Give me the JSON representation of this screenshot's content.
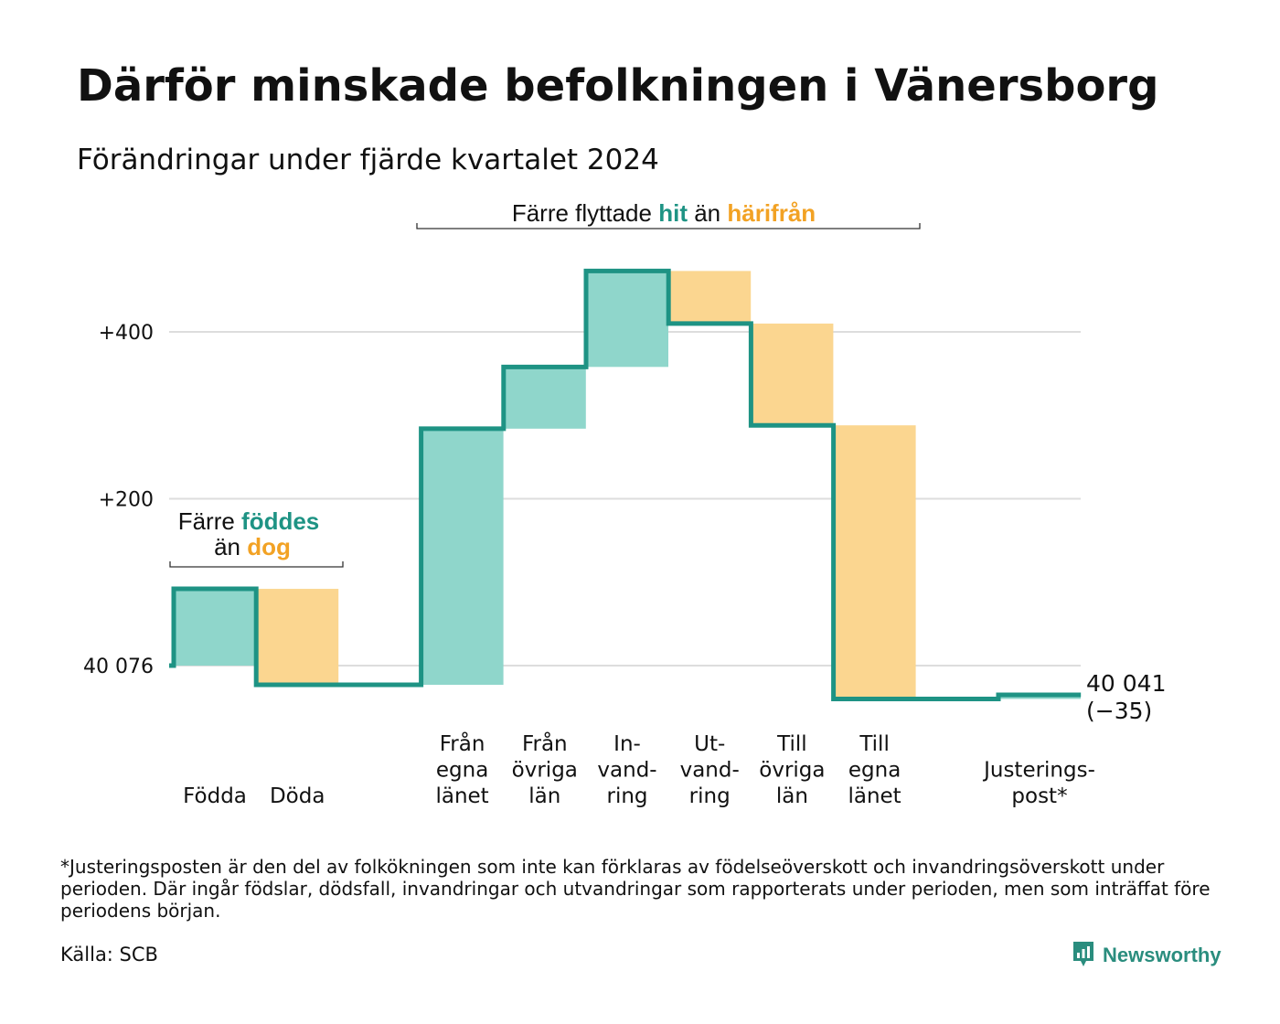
{
  "header": {
    "title": "Därför minskade befolkningen i Vänersborg",
    "subtitle": "Förändringar under fjärde kvartalet 2024"
  },
  "colors": {
    "inflow": "#8fd6cb",
    "outflow": "#fbd690",
    "line": "#1e9384",
    "grid": "#dddddd",
    "teal_text": "#1e9384",
    "orange_text": "#f2a224"
  },
  "chart_data": {
    "type": "waterfall",
    "title": "Därför minskade befolkningen i Vänersborg",
    "subtitle": "Förändringar under fjärde kvartalet 2024",
    "start_value": 40076,
    "start_label": "40 076",
    "end_value": 40041,
    "end_label": "40 041",
    "end_change_label": "(−35)",
    "y_axis_relative": true,
    "ylim": [
      -45,
      500
    ],
    "yticks": [
      {
        "value": 0,
        "label": "40 076"
      },
      {
        "value": 200,
        "label": "+200"
      },
      {
        "value": 400,
        "label": "+400"
      }
    ],
    "grid": true,
    "steps": [
      {
        "label_lines": [
          "Födda"
        ],
        "value": 92,
        "kind": "inflow"
      },
      {
        "label_lines": [
          "Döda"
        ],
        "value": -115,
        "kind": "outflow"
      },
      {
        "label_lines": [
          ""
        ],
        "value": 0,
        "kind": "none"
      },
      {
        "label_lines": [
          "Från",
          "egna",
          "länet"
        ],
        "value": 307,
        "kind": "inflow"
      },
      {
        "label_lines": [
          "Från",
          "övriga",
          "län"
        ],
        "value": 74,
        "kind": "inflow"
      },
      {
        "label_lines": [
          "In-",
          "vand-",
          "ring"
        ],
        "value": 115,
        "kind": "inflow"
      },
      {
        "label_lines": [
          "Ut-",
          "vand-",
          "ring"
        ],
        "value": -63,
        "kind": "outflow"
      },
      {
        "label_lines": [
          "Till",
          "övriga",
          "län"
        ],
        "value": -122,
        "kind": "outflow"
      },
      {
        "label_lines": [
          "Till",
          "egna",
          "länet"
        ],
        "value": -328,
        "kind": "outflow"
      },
      {
        "label_lines": [
          ""
        ],
        "value": 0,
        "kind": "none"
      },
      {
        "label_lines": [
          "Justerings-",
          "post*"
        ],
        "value": 5,
        "kind": "inflow"
      }
    ],
    "annotations": [
      {
        "id": "births",
        "text_parts": [
          "Färre ",
          "föddes",
          "än ",
          "dog"
        ]
      },
      {
        "id": "moves",
        "text_parts": [
          "Färre flyttade ",
          "hit",
          " än ",
          "härifrån"
        ]
      }
    ]
  },
  "footer": {
    "footnote": "*Justeringsposten är den del av folkökningen som inte kan förklaras av födelseöverskott och invandringsöverskott under perioden. Där ingår födslar, dödsfall, invandringar och utvandringar som rapporterats under perioden, men som inträffat före periodens början.",
    "source": "Källa: SCB",
    "brand": "Newsworthy",
    "brand_icon": "newsworthy-logo-icon"
  }
}
